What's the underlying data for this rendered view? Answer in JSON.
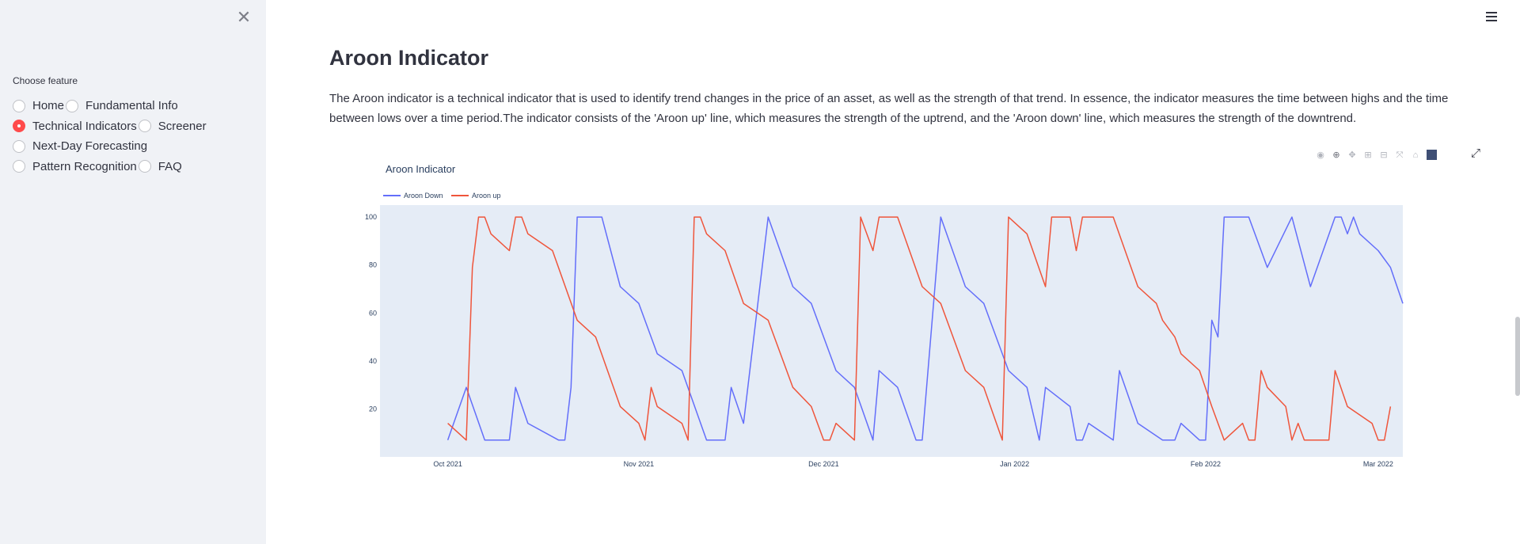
{
  "sidebar": {
    "close_icon": "close-icon",
    "choose_label": "Choose feature",
    "radio_options": [
      {
        "label": "Home",
        "checked": false
      },
      {
        "label": "Fundamental Info",
        "checked": false
      },
      {
        "label": "Technical Indicators",
        "checked": true
      },
      {
        "label": "Screener",
        "checked": false
      },
      {
        "label": "Next-Day Forecasting",
        "checked": false
      },
      {
        "label": "Pattern Recognition",
        "checked": false
      },
      {
        "label": "FAQ",
        "checked": false
      }
    ]
  },
  "header": {
    "menu_icon": "hamburger-menu-icon"
  },
  "main": {
    "title": "Aroon Indicator",
    "description": "The Aroon indicator is a technical indicator that is used to identify trend changes in the price of an asset, as well as the strength of that trend. In essence, the indicator measures the time between highs and the time between lows over a time period.The indicator consists of the 'Aroon up' line, which measures the strength of the uptrend, and the 'Aroon down' line, which measures the strength of the downtrend."
  },
  "modebar": {
    "icons": [
      "camera-icon",
      "zoom-icon",
      "pan-icon",
      "zoom-in-icon",
      "zoom-out-icon",
      "autoscale-icon",
      "reset-axes-icon",
      "plotly-logo-icon"
    ],
    "expand_icon": "fullscreen-icon"
  },
  "chart_data": {
    "type": "line",
    "title": "Aroon Indicator",
    "xlabel": "",
    "ylabel": "",
    "ylim": [
      0,
      105
    ],
    "xlim": [
      "2021-09-20",
      "2022-03-01"
    ],
    "yticks": [
      20,
      40,
      60,
      80,
      100
    ],
    "xticks": [
      "2021-10-01",
      "2021-11-01",
      "2021-12-01",
      "2022-01-01",
      "2022-02-01",
      "2022-03-01"
    ],
    "xtick_labels": [
      "Oct 2021",
      "Nov 2021",
      "Dec 2021",
      "Jan 2022",
      "Feb 2022",
      "Mar 2022"
    ],
    "grid": false,
    "legend": "top-left, horizontal",
    "colors": {
      "Aroon Down": "#636efa",
      "Aroon up": "#ef553b",
      "plot_bg": "#e5ecf6"
    },
    "series": [
      {
        "name": "Aroon Down",
        "points": [
          [
            "2021-10-01",
            7
          ],
          [
            "2021-10-04",
            29
          ],
          [
            "2021-10-07",
            7
          ],
          [
            "2021-10-11",
            7
          ],
          [
            "2021-10-12",
            29
          ],
          [
            "2021-10-14",
            14
          ],
          [
            "2021-10-19",
            7
          ],
          [
            "2021-10-20",
            7
          ],
          [
            "2021-10-21",
            29
          ],
          [
            "2021-10-22",
            100
          ],
          [
            "2021-10-26",
            100
          ],
          [
            "2021-10-29",
            71
          ],
          [
            "2021-11-01",
            64
          ],
          [
            "2021-11-04",
            43
          ],
          [
            "2021-11-08",
            36
          ],
          [
            "2021-11-12",
            7
          ],
          [
            "2021-11-15",
            7
          ],
          [
            "2021-11-16",
            29
          ],
          [
            "2021-11-18",
            14
          ],
          [
            "2021-11-22",
            100
          ],
          [
            "2021-11-26",
            71
          ],
          [
            "2021-11-29",
            64
          ],
          [
            "2021-12-03",
            36
          ],
          [
            "2021-12-06",
            29
          ],
          [
            "2021-12-09",
            7
          ],
          [
            "2021-12-10",
            36
          ],
          [
            "2021-12-13",
            29
          ],
          [
            "2021-12-16",
            7
          ],
          [
            "2021-12-17",
            7
          ],
          [
            "2021-12-20",
            100
          ],
          [
            "2021-12-24",
            71
          ],
          [
            "2021-12-27",
            64
          ],
          [
            "2021-12-31",
            36
          ],
          [
            "2022-01-03",
            29
          ],
          [
            "2022-01-05",
            7
          ],
          [
            "2022-01-06",
            29
          ],
          [
            "2022-01-10",
            21
          ],
          [
            "2022-01-11",
            7
          ],
          [
            "2022-01-12",
            7
          ],
          [
            "2022-01-13",
            14
          ],
          [
            "2022-01-17",
            7
          ],
          [
            "2022-01-18",
            36
          ],
          [
            "2022-01-21",
            14
          ],
          [
            "2022-01-25",
            7
          ],
          [
            "2022-01-27",
            7
          ],
          [
            "2022-01-28",
            14
          ],
          [
            "2022-01-31",
            7
          ],
          [
            "2022-02-01",
            7
          ],
          [
            "2022-02-02",
            57
          ],
          [
            "2022-02-03",
            50
          ],
          [
            "2022-02-04",
            100
          ],
          [
            "2022-02-08",
            100
          ],
          [
            "2022-02-11",
            79
          ],
          [
            "2022-02-15",
            100
          ],
          [
            "2022-02-18",
            71
          ],
          [
            "2022-02-22",
            100
          ],
          [
            "2022-02-23",
            100
          ],
          [
            "2022-02-24",
            93
          ],
          [
            "2022-02-25",
            100
          ],
          [
            "2022-02-26",
            93
          ],
          [
            "2022-03-01",
            86
          ],
          [
            "2022-03-03",
            79
          ],
          [
            "2022-03-05",
            64
          ]
        ]
      },
      {
        "name": "Aroon up",
        "points": [
          [
            "2021-10-01",
            14
          ],
          [
            "2021-10-04",
            7
          ],
          [
            "2021-10-05",
            79
          ],
          [
            "2021-10-06",
            100
          ],
          [
            "2021-10-07",
            100
          ],
          [
            "2021-10-08",
            93
          ],
          [
            "2021-10-11",
            86
          ],
          [
            "2021-10-12",
            100
          ],
          [
            "2021-10-13",
            100
          ],
          [
            "2021-10-14",
            93
          ],
          [
            "2021-10-18",
            86
          ],
          [
            "2021-10-22",
            57
          ],
          [
            "2021-10-25",
            50
          ],
          [
            "2021-10-29",
            21
          ],
          [
            "2021-11-01",
            14
          ],
          [
            "2021-11-02",
            7
          ],
          [
            "2021-11-03",
            29
          ],
          [
            "2021-11-04",
            21
          ],
          [
            "2021-11-08",
            14
          ],
          [
            "2021-11-09",
            7
          ],
          [
            "2021-11-10",
            100
          ],
          [
            "2021-11-11",
            100
          ],
          [
            "2021-11-12",
            93
          ],
          [
            "2021-11-15",
            86
          ],
          [
            "2021-11-18",
            64
          ],
          [
            "2021-11-22",
            57
          ],
          [
            "2021-11-26",
            29
          ],
          [
            "2021-11-29",
            21
          ],
          [
            "2021-11-30",
            14
          ],
          [
            "2021-12-01",
            7
          ],
          [
            "2021-12-02",
            7
          ],
          [
            "2021-12-03",
            14
          ],
          [
            "2021-12-06",
            7
          ],
          [
            "2021-12-07",
            100
          ],
          [
            "2021-12-08",
            93
          ],
          [
            "2021-12-09",
            86
          ],
          [
            "2021-12-10",
            100
          ],
          [
            "2021-12-13",
            100
          ],
          [
            "2021-12-17",
            71
          ],
          [
            "2021-12-20",
            64
          ],
          [
            "2021-12-24",
            36
          ],
          [
            "2021-12-27",
            29
          ],
          [
            "2021-12-30",
            7
          ],
          [
            "2021-12-31",
            100
          ],
          [
            "2022-01-03",
            93
          ],
          [
            "2022-01-06",
            71
          ],
          [
            "2022-01-07",
            100
          ],
          [
            "2022-01-10",
            100
          ],
          [
            "2022-01-11",
            86
          ],
          [
            "2022-01-12",
            100
          ],
          [
            "2022-01-17",
            100
          ],
          [
            "2022-01-21",
            71
          ],
          [
            "2022-01-24",
            64
          ],
          [
            "2022-01-25",
            57
          ],
          [
            "2022-01-27",
            50
          ],
          [
            "2022-01-28",
            43
          ],
          [
            "2022-01-31",
            36
          ],
          [
            "2022-02-02",
            21
          ],
          [
            "2022-02-04",
            7
          ],
          [
            "2022-02-07",
            14
          ],
          [
            "2022-02-08",
            7
          ],
          [
            "2022-02-09",
            7
          ],
          [
            "2022-02-10",
            36
          ],
          [
            "2022-02-11",
            29
          ],
          [
            "2022-02-14",
            21
          ],
          [
            "2022-02-15",
            7
          ],
          [
            "2022-02-16",
            14
          ],
          [
            "2022-02-17",
            7
          ],
          [
            "2022-02-21",
            7
          ],
          [
            "2022-02-22",
            36
          ],
          [
            "2022-02-24",
            21
          ],
          [
            "2022-02-28",
            14
          ],
          [
            "2022-03-01",
            7
          ],
          [
            "2022-03-02",
            7
          ],
          [
            "2022-03-03",
            21
          ]
        ]
      }
    ]
  }
}
